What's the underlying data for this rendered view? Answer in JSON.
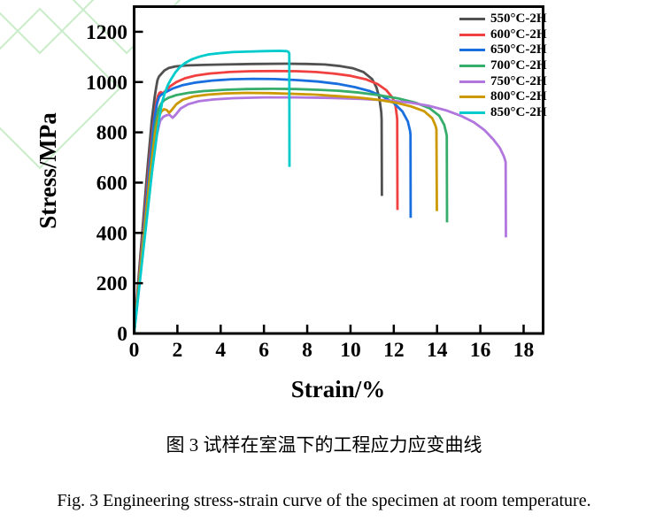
{
  "figure": {
    "caption_cn": "图 3 试样在室温下的工程应力应变曲线",
    "caption_en": "Fig. 3 Engineering stress-strain curve of the specimen at room temperature."
  },
  "watermark": {
    "color": "#c9ecc9"
  },
  "chart_data": {
    "type": "line",
    "title": "",
    "xlabel": "Strain/%",
    "ylabel": "Stress/MPa",
    "xlim": [
      0,
      18.9
    ],
    "ylim": [
      0,
      1300
    ],
    "x_ticks": [
      0,
      2,
      4,
      6,
      8,
      10,
      12,
      14,
      16,
      18
    ],
    "y_ticks": [
      0,
      200,
      400,
      600,
      800,
      1000,
      1200
    ],
    "grid": false,
    "legend_position": "top-right-inside",
    "axis_color": "#000000",
    "series": [
      {
        "name": "550°C-2H",
        "color": "#515151",
        "points": [
          [
            0,
            0
          ],
          [
            0.3,
            320
          ],
          [
            0.6,
            640
          ],
          [
            0.82,
            850
          ],
          [
            0.95,
            940
          ],
          [
            1.02,
            978
          ],
          [
            1.08,
            1008
          ],
          [
            1.15,
            1022
          ],
          [
            1.25,
            1032
          ],
          [
            1.4,
            1046
          ],
          [
            1.6,
            1056
          ],
          [
            1.9,
            1062
          ],
          [
            2.4,
            1066
          ],
          [
            3.2,
            1068
          ],
          [
            4.2,
            1070
          ],
          [
            5.5,
            1072
          ],
          [
            7,
            1073
          ],
          [
            8,
            1072
          ],
          [
            8.8,
            1070
          ],
          [
            9.5,
            1064
          ],
          [
            10.1,
            1055
          ],
          [
            10.6,
            1040
          ],
          [
            11,
            1012
          ],
          [
            11.2,
            978
          ],
          [
            11.33,
            938
          ],
          [
            11.42,
            880
          ],
          [
            11.44,
            850
          ],
          [
            11.45,
            547
          ]
        ]
      },
      {
        "name": "600°C-2H",
        "color": "#F14040",
        "points": [
          [
            0,
            0
          ],
          [
            0.33,
            320
          ],
          [
            0.66,
            640
          ],
          [
            0.88,
            830
          ],
          [
            1.02,
            915
          ],
          [
            1.1,
            945
          ],
          [
            1.17,
            957
          ],
          [
            1.24,
            960
          ],
          [
            1.32,
            955
          ],
          [
            1.45,
            965
          ],
          [
            1.65,
            982
          ],
          [
            1.95,
            1000
          ],
          [
            2.35,
            1015
          ],
          [
            2.85,
            1026
          ],
          [
            3.5,
            1034
          ],
          [
            4.4,
            1040
          ],
          [
            5.4,
            1043
          ],
          [
            6.5,
            1044
          ],
          [
            7.5,
            1043
          ],
          [
            8.4,
            1040
          ],
          [
            9.2,
            1034
          ],
          [
            10,
            1025
          ],
          [
            10.7,
            1011
          ],
          [
            11.25,
            992
          ],
          [
            11.65,
            968
          ],
          [
            11.95,
            937
          ],
          [
            12.08,
            905
          ],
          [
            12.14,
            865
          ],
          [
            12.16,
            850
          ],
          [
            12.17,
            491
          ]
        ]
      },
      {
        "name": "650°C-2H",
        "color": "#1A6FDF",
        "points": [
          [
            0,
            0
          ],
          [
            0.35,
            320
          ],
          [
            0.7,
            650
          ],
          [
            0.93,
            850
          ],
          [
            1.06,
            915
          ],
          [
            1.15,
            940
          ],
          [
            1.23,
            948
          ],
          [
            1.32,
            953
          ],
          [
            1.5,
            962
          ],
          [
            1.8,
            975
          ],
          [
            2.25,
            988
          ],
          [
            2.85,
            998
          ],
          [
            3.6,
            1006
          ],
          [
            4.5,
            1011
          ],
          [
            5.5,
            1013
          ],
          [
            6.5,
            1012
          ],
          [
            7.5,
            1008
          ],
          [
            8.5,
            1002
          ],
          [
            9.4,
            993
          ],
          [
            10.2,
            980
          ],
          [
            10.9,
            964
          ],
          [
            11.5,
            943
          ],
          [
            12,
            917
          ],
          [
            12.4,
            883
          ],
          [
            12.65,
            843
          ],
          [
            12.75,
            806
          ],
          [
            12.77,
            790
          ],
          [
            12.78,
            460
          ]
        ]
      },
      {
        "name": "700°C-2H",
        "color": "#37AD6B",
        "points": [
          [
            0,
            0
          ],
          [
            0.37,
            320
          ],
          [
            0.74,
            640
          ],
          [
            0.98,
            830
          ],
          [
            1.12,
            890
          ],
          [
            1.25,
            915
          ],
          [
            1.4,
            928
          ],
          [
            1.6,
            938
          ],
          [
            1.95,
            948
          ],
          [
            2.5,
            957
          ],
          [
            3.2,
            964
          ],
          [
            4.1,
            969
          ],
          [
            5.2,
            972
          ],
          [
            6.4,
            973
          ],
          [
            7.5,
            972
          ],
          [
            8.6,
            969
          ],
          [
            9.5,
            965
          ],
          [
            10.4,
            958
          ],
          [
            11.3,
            948
          ],
          [
            12.2,
            935
          ],
          [
            13,
            918
          ],
          [
            13.65,
            896
          ],
          [
            14.1,
            866
          ],
          [
            14.33,
            830
          ],
          [
            14.43,
            795
          ],
          [
            14.45,
            785
          ],
          [
            14.46,
            442
          ]
        ]
      },
      {
        "name": "750°C-2H",
        "color": "#B177DE",
        "points": [
          [
            0,
            0
          ],
          [
            0.4,
            320
          ],
          [
            0.8,
            630
          ],
          [
            1.05,
            790
          ],
          [
            1.2,
            845
          ],
          [
            1.35,
            862
          ],
          [
            1.5,
            868
          ],
          [
            1.63,
            870
          ],
          [
            1.78,
            858
          ],
          [
            1.92,
            870
          ],
          [
            2.15,
            895
          ],
          [
            2.5,
            912
          ],
          [
            3,
            924
          ],
          [
            3.7,
            931
          ],
          [
            4.6,
            936
          ],
          [
            6,
            939
          ],
          [
            7.5,
            939
          ],
          [
            9,
            937
          ],
          [
            10.5,
            933
          ],
          [
            11.7,
            927
          ],
          [
            12.7,
            919
          ],
          [
            13.6,
            906
          ],
          [
            14.4,
            888
          ],
          [
            15.1,
            866
          ],
          [
            15.7,
            840
          ],
          [
            16.2,
            808
          ],
          [
            16.6,
            772
          ],
          [
            16.9,
            738
          ],
          [
            17.08,
            706
          ],
          [
            17.15,
            688
          ],
          [
            17.17,
            680
          ],
          [
            17.18,
            382
          ]
        ]
      },
      {
        "name": "800°C-2H",
        "color": "#CC9900",
        "points": [
          [
            0,
            0
          ],
          [
            0.38,
            330
          ],
          [
            0.76,
            650
          ],
          [
            0.98,
            800
          ],
          [
            1.12,
            860
          ],
          [
            1.25,
            882
          ],
          [
            1.38,
            892
          ],
          [
            1.5,
            889
          ],
          [
            1.62,
            878
          ],
          [
            1.75,
            890
          ],
          [
            1.95,
            912
          ],
          [
            2.25,
            930
          ],
          [
            2.75,
            943
          ],
          [
            3.4,
            950
          ],
          [
            4.2,
            955
          ],
          [
            5.2,
            957
          ],
          [
            6.3,
            956
          ],
          [
            7.4,
            953
          ],
          [
            8.4,
            950
          ],
          [
            9.4,
            944
          ],
          [
            10.4,
            938
          ],
          [
            11.3,
            929
          ],
          [
            12.1,
            918
          ],
          [
            12.8,
            903
          ],
          [
            13.4,
            884
          ],
          [
            13.78,
            856
          ],
          [
            13.93,
            826
          ],
          [
            13.97,
            812
          ],
          [
            13.99,
            487
          ]
        ]
      },
      {
        "name": "850°C-2H",
        "color": "#00CBCC",
        "points": [
          [
            0,
            0
          ],
          [
            0.45,
            350
          ],
          [
            0.85,
            660
          ],
          [
            1.05,
            790
          ],
          [
            1.18,
            865
          ],
          [
            1.3,
            922
          ],
          [
            1.42,
            957
          ],
          [
            1.56,
            988
          ],
          [
            1.72,
            1013
          ],
          [
            1.92,
            1040
          ],
          [
            2.12,
            1060
          ],
          [
            2.38,
            1077
          ],
          [
            2.68,
            1091
          ],
          [
            3.05,
            1102
          ],
          [
            3.45,
            1110
          ],
          [
            3.95,
            1115
          ],
          [
            4.55,
            1119
          ],
          [
            5.2,
            1121
          ],
          [
            6,
            1123
          ],
          [
            6.7,
            1124
          ],
          [
            7.05,
            1123
          ],
          [
            7.14,
            1120
          ],
          [
            7.17,
            1112
          ],
          [
            7.18,
            663
          ]
        ]
      }
    ]
  }
}
